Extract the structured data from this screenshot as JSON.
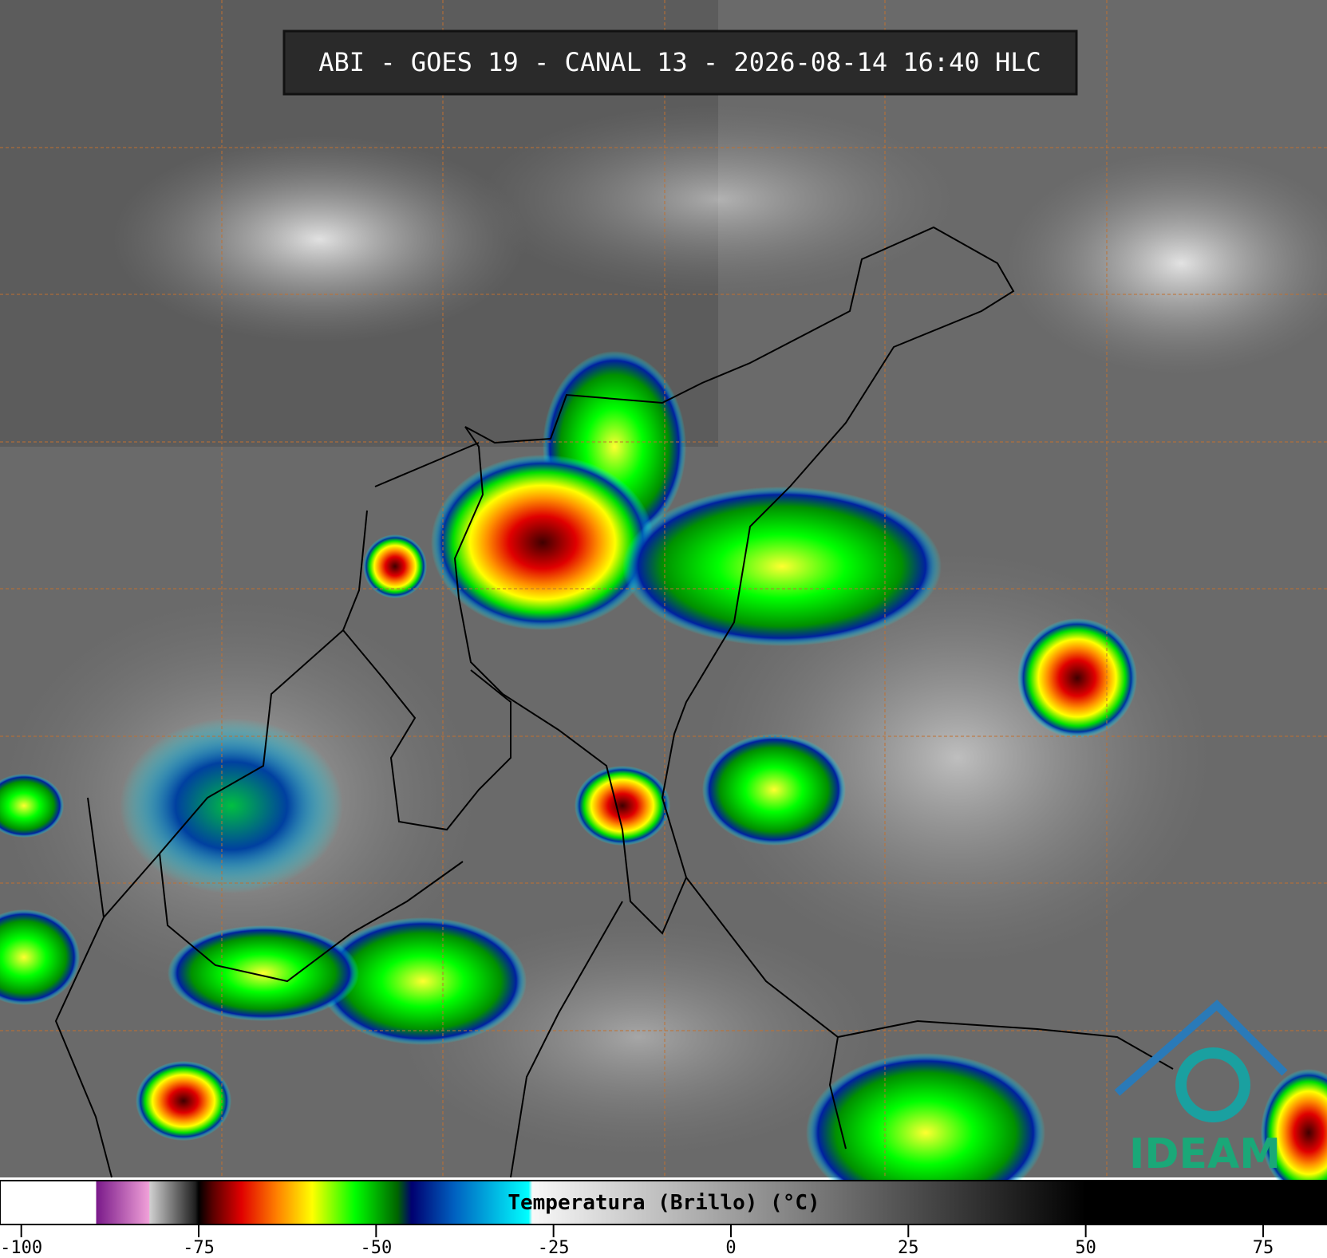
{
  "header": {
    "title": "ABI - GOES 19 - CANAL 13 - 2026-08-14 16:40 HLC"
  },
  "colorbar": {
    "label": "Temperatura (Brillo) (°C)",
    "lim": [
      -103,
      84
    ],
    "ticks": [
      -100,
      -75,
      -50,
      -25,
      0,
      25,
      50,
      75
    ],
    "stops": [
      {
        "value": -89.5,
        "color": "#ffffff"
      },
      {
        "value": -89.4,
        "color": "#7a1a8a"
      },
      {
        "value": -82,
        "color": "#f0a0d8"
      },
      {
        "value": -81.9,
        "color": "#d0d0d0"
      },
      {
        "value": -75.5,
        "color": "#202020"
      },
      {
        "value": -75,
        "color": "#000000"
      },
      {
        "value": -73,
        "color": "#5a0000"
      },
      {
        "value": -69,
        "color": "#e00000"
      },
      {
        "value": -64,
        "color": "#ff8000"
      },
      {
        "value": -59,
        "color": "#ffff00"
      },
      {
        "value": -53,
        "color": "#00ff00"
      },
      {
        "value": -47,
        "color": "#006400"
      },
      {
        "value": -45,
        "color": "#000070"
      },
      {
        "value": -39,
        "color": "#0060c0"
      },
      {
        "value": -28.5,
        "color": "#00ffff"
      },
      {
        "value": -28,
        "color": "#f8f8f8"
      },
      {
        "value": 50,
        "color": "#000000"
      },
      {
        "value": 84,
        "color": "#000000"
      }
    ]
  },
  "logo": {
    "text": "IDEAM"
  }
}
